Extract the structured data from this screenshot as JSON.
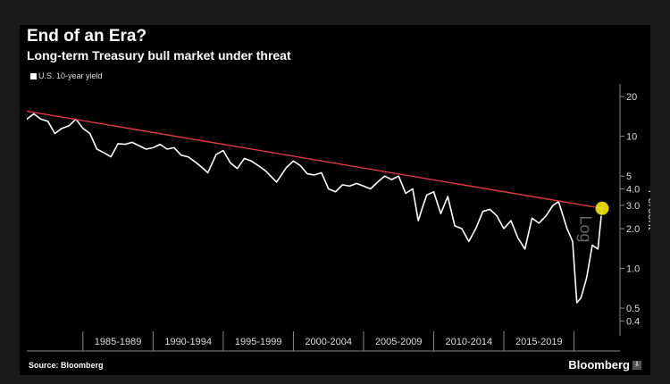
{
  "title": "End of an Era?",
  "subtitle": "Long-term Treasury bull market under threat",
  "source": "Source: Bloomberg",
  "brand": "Bloomberg",
  "brand_badge": "⇩",
  "log_tag": "Log",
  "colors": {
    "background": "#000000",
    "series": "#ffffff",
    "trendline": "#e03a3a",
    "highlight": "#f5e800"
  },
  "chart_data": {
    "type": "line",
    "title": "End of an Era?",
    "subtitle": "Long-term Treasury bull market under threat",
    "yscale": "log",
    "ylabel": "Percent",
    "ylim": [
      0.35,
      22
    ],
    "xlim": [
      1981.0,
      2022.0
    ],
    "y_ticks": [
      "20",
      "10",
      "5",
      "4.0",
      "3.0",
      "2.0",
      "1.0",
      "0.5",
      "0.4"
    ],
    "y_tick_values": [
      20,
      10,
      5,
      4,
      3,
      2,
      1,
      0.5,
      0.4
    ],
    "x_ticks": [
      "1985-1989",
      "1990-1994",
      "1995-1999",
      "2000-2004",
      "2005-2009",
      "2010-2014",
      "2015-2019"
    ],
    "x_tick_centers": [
      1987.5,
      1992.5,
      1997.5,
      2002.5,
      2007.5,
      2012.5,
      2017.5
    ],
    "x_boundaries": [
      1985,
      1990,
      1995,
      2000,
      2005,
      2010,
      2015,
      2020
    ],
    "grid": false,
    "legend": "top-left",
    "series": [
      {
        "name": "U.S. 10-year yield",
        "x": [
          1981.0,
          1981.5,
          1982.0,
          1982.5,
          1983.0,
          1983.5,
          1984.0,
          1984.5,
          1985.0,
          1985.5,
          1986.0,
          1986.5,
          1987.0,
          1987.5,
          1988.0,
          1988.5,
          1989.0,
          1989.5,
          1990.0,
          1990.5,
          1991.0,
          1991.5,
          1992.0,
          1992.5,
          1993.0,
          1993.5,
          1993.9,
          1994.5,
          1995.0,
          1995.5,
          1996.0,
          1996.5,
          1997.0,
          1997.5,
          1998.0,
          1998.8,
          1999.5,
          2000.0,
          2000.5,
          2001.0,
          2001.5,
          2002.0,
          2002.5,
          2003.0,
          2003.5,
          2004.0,
          2004.5,
          2005.0,
          2005.5,
          2006.0,
          2006.5,
          2007.0,
          2007.5,
          2008.0,
          2008.5,
          2008.9,
          2009.2,
          2009.5,
          2010.0,
          2010.5,
          2011.0,
          2011.5,
          2012.0,
          2012.5,
          2013.0,
          2013.5,
          2014.0,
          2014.5,
          2015.0,
          2015.5,
          2016.0,
          2016.5,
          2017.0,
          2017.5,
          2018.0,
          2018.5,
          2018.9,
          2019.5,
          2019.9,
          2020.2,
          2020.5,
          2020.9,
          2021.3,
          2021.7,
          2022.0
        ],
        "values": [
          13.5,
          14.8,
          13.5,
          13.0,
          10.5,
          11.5,
          12.0,
          13.5,
          11.5,
          10.5,
          8.0,
          7.5,
          7.0,
          8.8,
          8.7,
          9.0,
          8.5,
          8.0,
          8.2,
          8.7,
          8.0,
          8.2,
          7.2,
          7.0,
          6.4,
          5.8,
          5.3,
          7.3,
          7.8,
          6.3,
          5.7,
          6.8,
          6.5,
          6.0,
          5.5,
          4.5,
          5.8,
          6.5,
          6.0,
          5.2,
          5.1,
          5.3,
          4.0,
          3.8,
          4.3,
          4.2,
          4.4,
          4.2,
          4.0,
          4.5,
          5.0,
          4.7,
          5.0,
          3.7,
          4.0,
          2.3,
          2.9,
          3.6,
          3.8,
          2.6,
          3.5,
          2.1,
          2.0,
          1.6,
          2.0,
          2.7,
          2.8,
          2.5,
          2.0,
          2.3,
          1.7,
          1.4,
          2.4,
          2.2,
          2.5,
          3.0,
          3.2,
          2.0,
          1.6,
          0.55,
          0.6,
          0.85,
          1.5,
          1.4,
          2.9
        ]
      }
    ],
    "trendline": {
      "x": [
        1981.0,
        2022.0
      ],
      "values": [
        15.5,
        2.85
      ]
    },
    "highlight_point": {
      "x": 2022.0,
      "value": 2.85
    }
  }
}
